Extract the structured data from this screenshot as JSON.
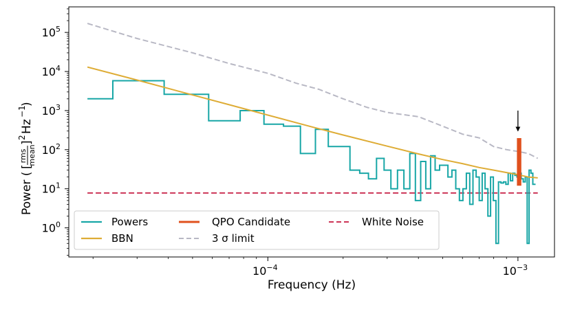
{
  "chart_data": {
    "type": "line",
    "title": "",
    "xlabel": "Frequency (Hz)",
    "ylabel": "Power ([rms/mean]² Hz⁻¹)",
    "ylabel_parts": {
      "prefix": "Power (",
      "frac_num": "rms",
      "frac_den": "mean",
      "exp": "2",
      "unit": "Hz",
      "unit_exp": "−1",
      "suffix": ")"
    },
    "xscale": "log",
    "yscale": "log",
    "xlim": [
      1.6e-05,
      0.0014
    ],
    "ylim": [
      0.18,
      450000.0
    ],
    "x_ticks": [
      {
        "value": 0.0001,
        "base": "10",
        "exp": "−4"
      },
      {
        "value": 0.001,
        "base": "10",
        "exp": "−3"
      }
    ],
    "y_ticks": [
      {
        "value": 1,
        "base": "10",
        "exp": "0"
      },
      {
        "value": 10,
        "base": "10",
        "exp": "1"
      },
      {
        "value": 100,
        "base": "10",
        "exp": "2"
      },
      {
        "value": 1000,
        "base": "10",
        "exp": "3"
      },
      {
        "value": 10000,
        "base": "10",
        "exp": "4"
      },
      {
        "value": 100000,
        "base": "10",
        "exp": "5"
      }
    ],
    "legend_position": "lower-left",
    "series": [
      {
        "name": "Powers",
        "style": "steps",
        "color": "#17a6a6",
        "x": [
          1.9e-05,
          2.9e-05,
          4.8e-05,
          6.8e-05,
          8.7e-05,
          0.000106,
          0.000125,
          0.000145,
          0.000165,
          0.000184,
          0.000203,
          0.000223,
          0.000243,
          0.000262,
          0.000282,
          0.000301,
          0.00032,
          0.00034,
          0.00036,
          0.000379,
          0.000399,
          0.000418,
          0.000438,
          0.000457,
          0.000476,
          0.000496,
          0.000515,
          0.000535,
          0.000554,
          0.000574,
          0.000593,
          0.000612,
          0.000632,
          0.000651,
          0.000671,
          0.00069,
          0.00071,
          0.000729,
          0.000749,
          0.000768,
          0.000787,
          0.000807,
          0.000826,
          0.000846,
          0.000865,
          0.000885,
          0.000904,
          0.000924,
          0.000943,
          0.000962,
          0.000982,
          0.001001,
          0.001021,
          0.00104,
          0.00106,
          0.001079,
          0.001098,
          0.001118,
          0.001137,
          0.001157,
          0.001176
        ],
        "values": [
          2000,
          5800,
          2600,
          550,
          1000,
          450,
          400,
          80,
          330,
          120,
          120,
          30,
          25,
          18,
          60,
          30,
          10,
          30,
          10,
          80,
          5,
          50,
          10,
          70,
          30,
          40,
          40,
          20,
          30,
          10,
          5,
          10,
          25,
          4,
          30,
          20,
          5,
          25,
          10,
          2,
          20,
          5,
          0.4,
          15,
          14,
          15,
          13,
          25,
          16,
          25,
          22,
          20,
          25,
          18,
          15,
          20,
          0.4,
          30,
          25,
          13,
          13
        ]
      },
      {
        "name": "BBN",
        "style": "line",
        "color": "#deac35",
        "function": "broken power law: P = 13000 * (f / 1.9e-5)^-1.7 + 9",
        "x": [
          1.9e-05,
          3e-05,
          5e-05,
          7e-05,
          0.0001,
          0.00015,
          0.0002,
          0.0003,
          0.0004,
          0.0005,
          0.0006,
          0.0007,
          0.0008,
          0.0009,
          0.001,
          0.0011,
          0.0012
        ],
        "values": [
          13000,
          6039,
          2508,
          1416,
          766,
          383,
          237,
          123,
          78,
          56,
          44,
          35,
          30,
          26,
          23,
          20,
          19
        ]
      },
      {
        "name": "QPO Candidate",
        "style": "line",
        "color": "#e0501d",
        "x": [
          0.001001,
          0.001001,
          0.001021,
          0.001021
        ],
        "values": [
          12,
          185,
          185,
          12
        ]
      },
      {
        "name": "3 σ limit",
        "style": "dashed",
        "color": "#b8b8c4",
        "x": [
          1.9e-05,
          3e-05,
          5e-05,
          7e-05,
          0.0001,
          0.00013,
          0.00016,
          0.0002,
          0.00025,
          0.0003,
          0.0004,
          0.0005,
          0.0006,
          0.0007,
          0.0008,
          0.0009,
          0.001,
          0.0011,
          0.0012
        ],
        "values": [
          170000,
          70000,
          30000,
          16000,
          9000,
          5000,
          3500,
          2000,
          1200,
          900,
          700,
          400,
          250,
          200,
          120,
          100,
          90,
          80,
          60
        ]
      },
      {
        "name": "White Noise",
        "style": "dashed",
        "color": "#cc3355",
        "x": [
          1.9e-05,
          0.0012
        ],
        "values": [
          7.8,
          7.8
        ]
      }
    ],
    "annotations": [
      {
        "type": "arrow",
        "x": 0.001,
        "y_start": 1000,
        "y_end": 300,
        "color": "#000000",
        "label": ""
      }
    ]
  }
}
